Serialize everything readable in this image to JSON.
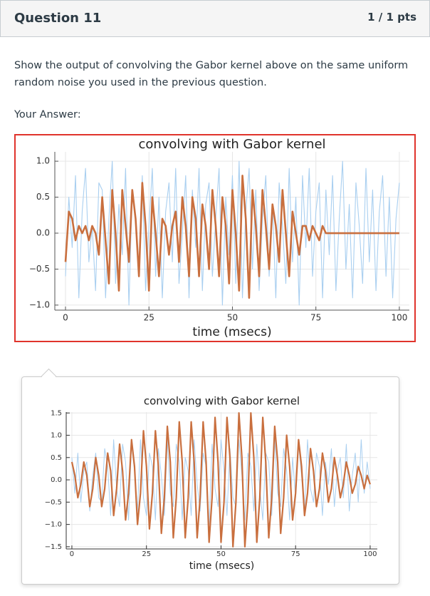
{
  "header": {
    "title": "Question 11",
    "points": "1 / 1 pts"
  },
  "question": "Show the output of convolving the Gabor kernel above on the same uniform random noise you used in the previous question.",
  "answer_label": "Your Answer:",
  "chart_data": [
    {
      "type": "line",
      "title": "convolving with Gabor kernel",
      "xlabel": "time (msecs)",
      "x": [
        0,
        1,
        2,
        3,
        4,
        5,
        6,
        7,
        8,
        9,
        10,
        11,
        12,
        13,
        14,
        15,
        16,
        17,
        18,
        19,
        20,
        21,
        22,
        23,
        24,
        25,
        26,
        27,
        28,
        29,
        30,
        31,
        32,
        33,
        34,
        35,
        36,
        37,
        38,
        39,
        40,
        41,
        42,
        43,
        44,
        45,
        46,
        47,
        48,
        49,
        50,
        51,
        52,
        53,
        54,
        55,
        56,
        57,
        58,
        59,
        60,
        61,
        62,
        63,
        64,
        65,
        66,
        67,
        68,
        69,
        70,
        71,
        72,
        73,
        74,
        75,
        76,
        77,
        78,
        79,
        80,
        81,
        82,
        83,
        84,
        85,
        86,
        87,
        88,
        89,
        90,
        91,
        92,
        93,
        94,
        95,
        96,
        97,
        98,
        99,
        100
      ],
      "series": [
        {
          "color": "#a9cff0",
          "values": [
            -0.6,
            0.5,
            -0.2,
            0.8,
            -0.9,
            0.3,
            0.9,
            -0.4,
            0.1,
            -0.8,
            0.7,
            0.6,
            -0.9,
            0.2,
            1.0,
            -0.7,
            0.4,
            -0.3,
            0.9,
            -1.0,
            0.6,
            0.2,
            -0.5,
            0.8,
            -0.8,
            0.1,
            0.9,
            -0.6,
            0.5,
            -0.9,
            0.3,
            0.7,
            -0.4,
            0.9,
            -0.7,
            0.0,
            0.8,
            -0.9,
            0.6,
            -0.2,
            0.9,
            -0.8,
            0.4,
            0.7,
            -0.6,
            0.2,
            0.9,
            -1.0,
            0.5,
            -0.3,
            0.8,
            -0.7,
            1.0,
            -0.9,
            0.3,
            0.9,
            -0.5,
            0.6,
            -0.8,
            0.2,
            0.8,
            -0.6,
            0.4,
            -0.9,
            0.7,
            0.1,
            -0.7,
            0.9,
            -0.4,
            0.5,
            -1.0,
            0.8,
            -0.2,
            0.9,
            -0.6,
            0.3,
            0.7,
            -0.9,
            0.6,
            -0.3,
            0.8,
            -0.8,
            0.2,
            1.0,
            -0.5,
            0.4,
            -0.9,
            0.7,
            0.1,
            -0.7,
            0.9,
            -0.4,
            0.6,
            -0.8,
            0.3,
            0.8,
            -0.6,
            0.5,
            -0.9,
            0.2,
            0.7
          ]
        },
        {
          "color": "#c96f3e",
          "values": [
            -0.4,
            0.3,
            0.2,
            -0.1,
            0.1,
            0.0,
            0.1,
            -0.1,
            0.1,
            0.0,
            -0.3,
            0.5,
            -0.1,
            -0.7,
            0.6,
            0.0,
            -0.8,
            0.6,
            0.1,
            -0.4,
            0.6,
            0.2,
            -0.6,
            0.7,
            0.1,
            -0.8,
            0.5,
            0.0,
            -0.6,
            0.2,
            0.1,
            -0.3,
            0.1,
            0.3,
            -0.4,
            0.5,
            0.1,
            -0.6,
            0.5,
            0.2,
            -0.6,
            0.4,
            0.1,
            -0.5,
            0.6,
            0.1,
            -0.6,
            0.5,
            0.1,
            -0.7,
            0.6,
            0.0,
            -0.8,
            0.8,
            0.2,
            -0.9,
            0.6,
            0.1,
            -0.6,
            0.6,
            0.1,
            -0.5,
            0.4,
            0.1,
            -0.4,
            0.6,
            0.0,
            -0.6,
            0.3,
            0.0,
            -0.3,
            0.1,
            0.1,
            -0.1,
            0.1,
            0.0,
            -0.1,
            0.1,
            0.0,
            0.0,
            0.0,
            0.0,
            0.0,
            0.0,
            0.0,
            0.0,
            0.0,
            0.0,
            0.0,
            0.0,
            0.0,
            0.0,
            0.0,
            0.0,
            0.0,
            0.0,
            0.0,
            0.0,
            0.0,
            0.0,
            0.0
          ]
        }
      ],
      "xlim": [
        -3.2,
        103
      ],
      "ylim": [
        -1.07,
        1.13
      ],
      "xticks": [
        0,
        25,
        50,
        75,
        100
      ],
      "yticks": [
        {
          "value": -1,
          "label": "−1.0"
        },
        {
          "value": -0.5,
          "label": "−0.5"
        },
        {
          "value": 0,
          "label": "0.0"
        },
        0.5,
        {
          "value": 1,
          "label": "1.0"
        }
      ],
      "grid": true
    },
    {
      "type": "line",
      "title": "convolving with Gabor kernel",
      "xlabel": "time (msecs)",
      "x": [
        0,
        1,
        2,
        3,
        4,
        5,
        6,
        7,
        8,
        9,
        10,
        11,
        12,
        13,
        14,
        15,
        16,
        17,
        18,
        19,
        20,
        21,
        22,
        23,
        24,
        25,
        26,
        27,
        28,
        29,
        30,
        31,
        32,
        33,
        34,
        35,
        36,
        37,
        38,
        39,
        40,
        41,
        42,
        43,
        44,
        45,
        46,
        47,
        48,
        49,
        50,
        51,
        52,
        53,
        54,
        55,
        56,
        57,
        58,
        59,
        60,
        61,
        62,
        63,
        64,
        65,
        66,
        67,
        68,
        69,
        70,
        71,
        72,
        73,
        74,
        75,
        76,
        77,
        78,
        79,
        80,
        81,
        82,
        83,
        84,
        85,
        86,
        87,
        88,
        89,
        90,
        91,
        92,
        93,
        94,
        95,
        96,
        97,
        98,
        99,
        100
      ],
      "series": [
        {
          "color": "#a9cff0",
          "values": [
            0.5,
            -0.3,
            0.6,
            -0.5,
            0.2,
            0.4,
            -0.7,
            0.1,
            0.6,
            -0.4,
            -0.5,
            0.7,
            0.3,
            -0.8,
            0.9,
            -0.2,
            -0.6,
            0.8,
            0.4,
            -0.9,
            0.8,
            0.2,
            -0.7,
            0.9,
            -0.4,
            -0.8,
            0.6,
            0.3,
            -0.9,
            0.7,
            0.1,
            -0.8,
            0.9,
            -0.3,
            -0.6,
            0.8,
            0.4,
            -0.9,
            0.5,
            0.2,
            -0.8,
            0.9,
            -0.1,
            -0.7,
            0.6,
            0.3,
            -1.0,
            0.8,
            -0.2,
            -0.6,
            0.9,
            0.2,
            -0.8,
            0.7,
            -0.4,
            -0.6,
            0.9,
            0.1,
            -0.9,
            0.6,
            0.3,
            -0.7,
            0.8,
            -0.2,
            -0.9,
            0.6,
            0.4,
            -0.8,
            0.9,
            -0.3,
            -0.6,
            0.7,
            0.2,
            -0.9,
            0.5,
            -0.4,
            0.8,
            0.1,
            -0.7,
            0.9,
            -0.2,
            -0.5,
            0.6,
            0.3,
            -0.8,
            0.4,
            -0.1,
            0.7,
            -0.6,
            0.2,
            0.5,
            -0.4,
            0.8,
            -0.7,
            0.1,
            0.6,
            -0.5,
            0.9,
            -0.3,
            0.4,
            -0.2
          ]
        },
        {
          "color": "#c96f3e",
          "values": [
            0.4,
            0.1,
            -0.4,
            -0.1,
            0.4,
            0.1,
            -0.6,
            -0.2,
            0.5,
            0.1,
            -0.6,
            -0.2,
            0.6,
            0.2,
            -0.8,
            -0.2,
            0.8,
            0.2,
            -0.9,
            -0.3,
            0.9,
            0.3,
            -1.0,
            -0.3,
            1.1,
            0.3,
            -1.1,
            -0.3,
            1.1,
            0.3,
            -1.2,
            -0.4,
            1.2,
            0.4,
            -1.3,
            -0.4,
            1.3,
            0.4,
            -1.3,
            -0.4,
            1.3,
            0.4,
            -1.3,
            -0.4,
            1.3,
            0.4,
            -1.4,
            -0.4,
            1.4,
            0.4,
            -1.4,
            -0.5,
            1.4,
            0.5,
            -1.5,
            -0.5,
            1.5,
            0.5,
            -1.5,
            -0.5,
            1.5,
            0.5,
            -1.4,
            -0.4,
            1.4,
            0.4,
            -1.3,
            -0.4,
            1.2,
            0.4,
            -1.2,
            -0.4,
            1.0,
            0.3,
            -0.9,
            -0.3,
            0.9,
            0.3,
            -0.8,
            -0.3,
            0.7,
            0.2,
            -0.6,
            -0.2,
            0.6,
            0.2,
            -0.5,
            -0.2,
            0.5,
            0.1,
            -0.4,
            -0.1,
            0.4,
            0.1,
            -0.3,
            -0.1,
            0.3,
            0.1,
            -0.2,
            0.1,
            -0.1
          ]
        }
      ],
      "xlim": [
        -1.9,
        102.4
      ],
      "ylim": [
        -1.55,
        1.52
      ],
      "xticks": [
        0,
        25,
        50,
        75,
        100
      ],
      "yticks": [
        {
          "value": -1.5,
          "label": "−1.5"
        },
        {
          "value": -1,
          "label": "−1.0"
        },
        {
          "value": -0.5,
          "label": "−0.5"
        },
        {
          "value": 0,
          "label": "0.0"
        },
        0.5,
        {
          "value": 1,
          "label": "1.0"
        },
        1.5
      ],
      "grid": true
    }
  ]
}
